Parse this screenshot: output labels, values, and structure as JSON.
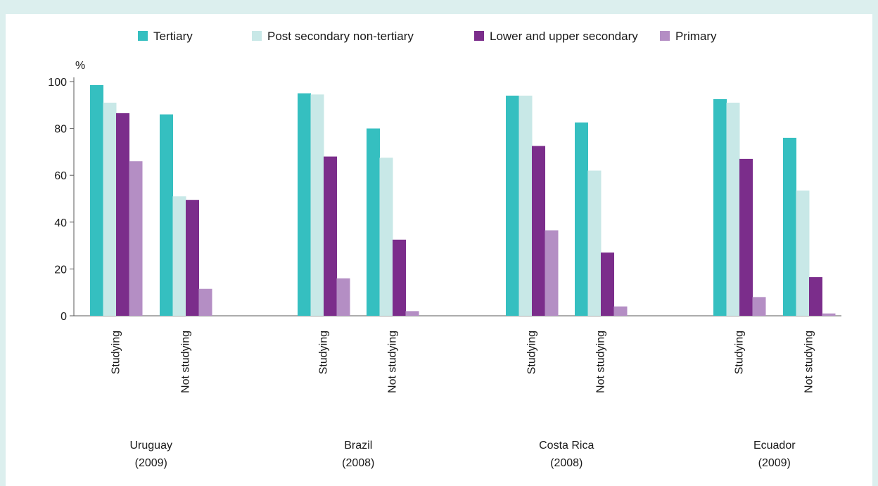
{
  "colors": {
    "tertiary": "#35bfc0",
    "post_secondary": "#c8e8e7",
    "secondary": "#7b2d8b",
    "primary": "#b48ec4",
    "background": "#dcefee",
    "axis": "#5a5a5a"
  },
  "chart_data": {
    "type": "bar",
    "ylabel": "%",
    "ylim": [
      0,
      100
    ],
    "yticks": [
      0,
      20,
      40,
      60,
      80,
      100
    ],
    "grid": false,
    "legend_position": "top",
    "groups": [
      {
        "label_line1": "Uruguay",
        "label_line2": "(2009)"
      },
      {
        "label_line1": "Brazil",
        "label_line2": "(2008)"
      },
      {
        "label_line1": "Costa Rica",
        "label_line2": "(2008)"
      },
      {
        "label_line1": "Ecuador",
        "label_line2": "(2009)"
      }
    ],
    "categories": [
      "Studying",
      "Not studying",
      "Studying",
      "Not studying",
      "Studying",
      "Not studying",
      "Studying",
      "Not studying"
    ],
    "series": [
      {
        "name": "Tertiary",
        "color": "#35bfc0",
        "values": [
          98.5,
          86,
          95,
          80,
          94,
          82.5,
          92.5,
          76
        ]
      },
      {
        "name": "Post secondary non-tertiary",
        "color": "#c8e8e7",
        "values": [
          91,
          51,
          94.5,
          67.5,
          94,
          62,
          91,
          53.5
        ]
      },
      {
        "name": "Lower and upper secondary",
        "color": "#7b2d8b",
        "values": [
          86.5,
          49.5,
          68,
          32.5,
          72.5,
          27,
          67,
          16.5
        ]
      },
      {
        "name": "Primary",
        "color": "#b48ec4",
        "values": [
          66,
          11.5,
          16,
          2,
          36.5,
          4,
          8,
          1
        ]
      }
    ]
  }
}
